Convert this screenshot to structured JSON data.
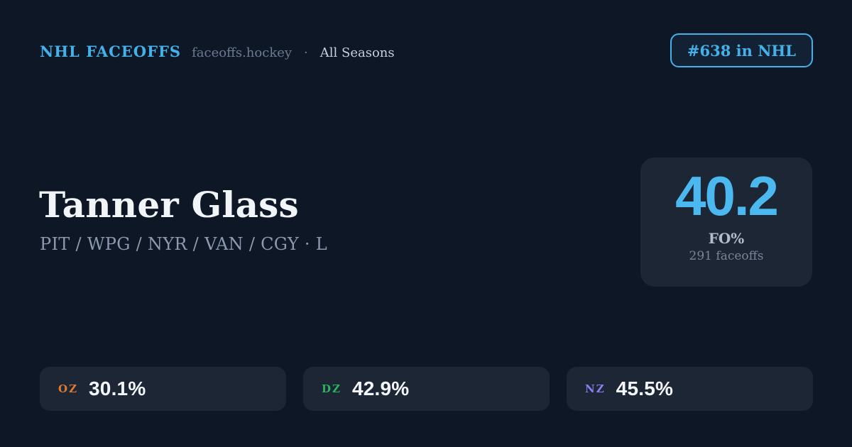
{
  "theme": {
    "background": "#0e1726",
    "card_background": "#1d2635",
    "accent_blue": "#45b1ea",
    "stat_blue": "#4cb8f0",
    "text_primary": "#f2f5f8",
    "text_muted": "#8d99ae"
  },
  "header": {
    "brand": "NHL FACEOFFS",
    "site": "faceoffs.hockey",
    "separator": "·",
    "season": "All Seasons",
    "rank_badge": "#638 in NHL"
  },
  "player": {
    "name": "Tanner Glass",
    "teams": "PIT / WPG / NYR / VAN / CGY · L"
  },
  "stat_card": {
    "value": "40.2",
    "label": "FO%",
    "subtext": "291 faceoffs"
  },
  "zones": [
    {
      "label": "OZ",
      "value": "30.1%",
      "color": "#e1792f"
    },
    {
      "label": "DZ",
      "value": "42.9%",
      "color": "#2bb35e"
    },
    {
      "label": "NZ",
      "value": "45.5%",
      "color": "#8b7df2"
    }
  ]
}
